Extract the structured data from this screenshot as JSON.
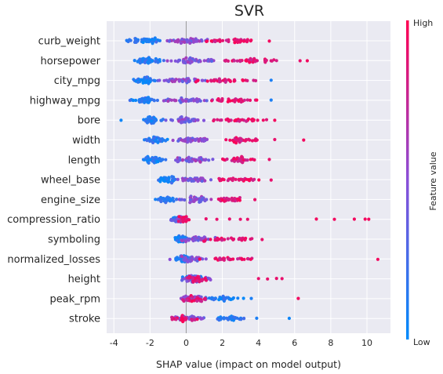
{
  "chart_data": {
    "type": "scatter",
    "subtype": "shap-beeswarm",
    "title": "SVR",
    "xlabel": "SHAP value (impact on model output)",
    "xlim": [
      -4.4,
      11.3
    ],
    "xticks": [
      -4,
      -2,
      0,
      2,
      4,
      6,
      8,
      10
    ],
    "grid": true,
    "zero_line": true,
    "colorbar": {
      "label": "Feature value",
      "high": "High",
      "low": "Low",
      "low_color": "#008bfb",
      "mid_color": "#8a4fd8",
      "high_color": "#ff0052"
    },
    "features": [
      {
        "name": "curb_weight",
        "low_range": [
          -3.6,
          -1.2
        ],
        "mid_range": [
          -1.4,
          1.5
        ],
        "high_range": [
          1.0,
          3.9
        ],
        "outliers": [
          [
            4.6,
            0.95
          ]
        ],
        "count": 120,
        "spread": 0.45
      },
      {
        "name": "horsepower",
        "low_range": [
          -3.0,
          -1.2
        ],
        "mid_range": [
          -1.4,
          2.0
        ],
        "high_range": [
          2.0,
          5.5
        ],
        "outliers": [
          [
            6.3,
            0.9
          ],
          [
            6.7,
            0.95
          ]
        ],
        "count": 120,
        "spread": 0.45
      },
      {
        "name": "city_mpg",
        "low_range": [
          -3.1,
          -1.6
        ],
        "mid_range": [
          -1.8,
          1.4
        ],
        "high_range": [
          0.2,
          4.2
        ],
        "outliers": [
          [
            4.7,
            0.1
          ]
        ],
        "count": 110,
        "spread": 0.42,
        "inverted": true
      },
      {
        "name": "highway_mpg",
        "low_range": [
          -3.2,
          -1.5
        ],
        "mid_range": [
          -1.6,
          1.8
        ],
        "high_range": [
          1.2,
          4.2
        ],
        "outliers": [
          [
            4.7,
            0.1
          ]
        ],
        "count": 110,
        "spread": 0.4,
        "inverted": true
      },
      {
        "name": "bore",
        "low_range": [
          -2.6,
          -1.2
        ],
        "mid_range": [
          -1.2,
          1.2
        ],
        "high_range": [
          0.8,
          4.8
        ],
        "outliers": [
          [
            -3.6,
            0.05
          ],
          [
            4.9,
            0.95
          ]
        ],
        "count": 110,
        "spread": 0.42
      },
      {
        "name": "width",
        "low_range": [
          -2.5,
          -1.0
        ],
        "mid_range": [
          -1.0,
          1.5
        ],
        "high_range": [
          2.0,
          4.0
        ],
        "outliers": [
          [
            4.9,
            0.9
          ],
          [
            6.5,
            0.95
          ]
        ],
        "count": 110,
        "spread": 0.42
      },
      {
        "name": "length",
        "low_range": [
          -2.7,
          -1.0
        ],
        "mid_range": [
          -1.2,
          1.8
        ],
        "high_range": [
          1.8,
          4.0
        ],
        "outliers": [
          [
            4.6,
            0.9
          ]
        ],
        "count": 110,
        "spread": 0.42
      },
      {
        "name": "wheel_base",
        "low_range": [
          -1.7,
          -0.5
        ],
        "mid_range": [
          -0.6,
          1.5
        ],
        "high_range": [
          1.5,
          4.2
        ],
        "outliers": [
          [
            4.7,
            0.9
          ]
        ],
        "count": 100,
        "spread": 0.42
      },
      {
        "name": "engine_size",
        "low_range": [
          -1.8,
          -0.4
        ],
        "mid_range": [
          -0.5,
          1.6
        ],
        "high_range": [
          1.6,
          3.6
        ],
        "outliers": [
          [
            3.8,
            0.9
          ]
        ],
        "count": 100,
        "spread": 0.4
      },
      {
        "name": "compression_ratio",
        "low_range": [
          -1.0,
          0.1
        ],
        "mid_range": [
          -1.0,
          0.2
        ],
        "high_range": [
          -0.5,
          0.2
        ],
        "outliers": [
          [
            1.1,
            0.9
          ],
          [
            1.7,
            0.9
          ],
          [
            2.4,
            0.9
          ],
          [
            3.0,
            0.9
          ],
          [
            3.4,
            0.9
          ],
          [
            7.2,
            0.95
          ],
          [
            8.2,
            0.95
          ],
          [
            9.3,
            0.95
          ],
          [
            9.9,
            0.95
          ],
          [
            10.1,
            0.95
          ]
        ],
        "count": 70,
        "spread": 0.32
      },
      {
        "name": "symboling",
        "low_range": [
          -0.7,
          0.2
        ],
        "mid_range": [
          -0.6,
          1.8
        ],
        "high_range": [
          0.5,
          3.8
        ],
        "outliers": [
          [
            4.2,
            0.9
          ]
        ],
        "count": 100,
        "spread": 0.4
      },
      {
        "name": "normalized_losses",
        "low_range": [
          -0.8,
          0.2
        ],
        "mid_range": [
          -0.6,
          1.2
        ],
        "high_range": [
          0.6,
          4.0
        ],
        "outliers": [
          [
            -0.9,
            0.5
          ],
          [
            10.6,
            0.95
          ]
        ],
        "count": 90,
        "spread": 0.4
      },
      {
        "name": "height",
        "low_range": [
          -0.4,
          1.2
        ],
        "mid_range": [
          -0.4,
          1.5
        ],
        "high_range": [
          0.0,
          1.2
        ],
        "outliers": [
          [
            4.0,
            0.9
          ],
          [
            4.5,
            0.9
          ],
          [
            5.0,
            0.9
          ],
          [
            5.3,
            0.9
          ]
        ],
        "count": 90,
        "spread": 0.4
      },
      {
        "name": "peak_rpm",
        "low_range": [
          0.8,
          3.2
        ],
        "mid_range": [
          -0.4,
          1.5
        ],
        "high_range": [
          -0.4,
          1.2
        ],
        "outliers": [
          [
            3.6,
            0.1
          ],
          [
            6.2,
            0.95
          ]
        ],
        "count": 90,
        "spread": 0.38
      },
      {
        "name": "stroke",
        "low_range": [
          1.2,
          3.5
        ],
        "mid_range": [
          -0.8,
          1.2
        ],
        "high_range": [
          -1.0,
          0.7
        ],
        "outliers": [
          [
            3.9,
            0.1
          ],
          [
            5.7,
            0.05
          ]
        ],
        "count": 90,
        "spread": 0.38
      }
    ]
  }
}
